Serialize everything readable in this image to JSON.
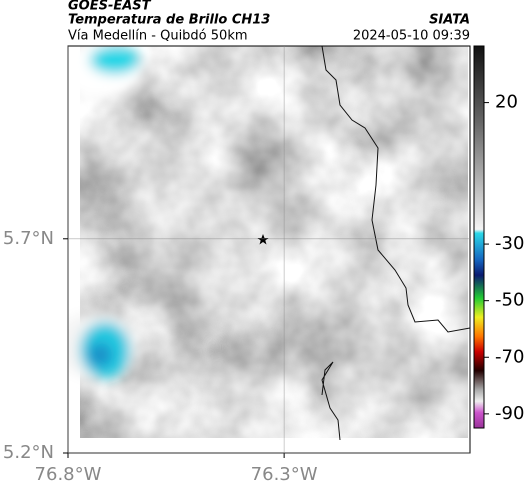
{
  "chart_data": {
    "type": "map",
    "title": "GOES-EAST",
    "subtitle": "Temperatura de Brillo CH13",
    "source": "SIATA",
    "route": "Vía Medellín - Quibdó 50km",
    "timestamp": "2024-05-10 09:39",
    "xlim": [
      -76.8,
      -75.87
    ],
    "ylim": [
      5.2,
      6.15
    ],
    "xticks": [
      {
        "value": -76.8,
        "label": "76.8°W"
      },
      {
        "value": -76.3,
        "label": "76.3°W"
      }
    ],
    "yticks": [
      {
        "value": 5.2,
        "label": "5.2°N"
      },
      {
        "value": 5.7,
        "label": "5.7°N"
      }
    ],
    "colorbar": {
      "lim": [
        -95,
        40
      ],
      "ticks": [
        20,
        -30,
        -50,
        -70,
        -90
      ]
    },
    "grid": true
  }
}
